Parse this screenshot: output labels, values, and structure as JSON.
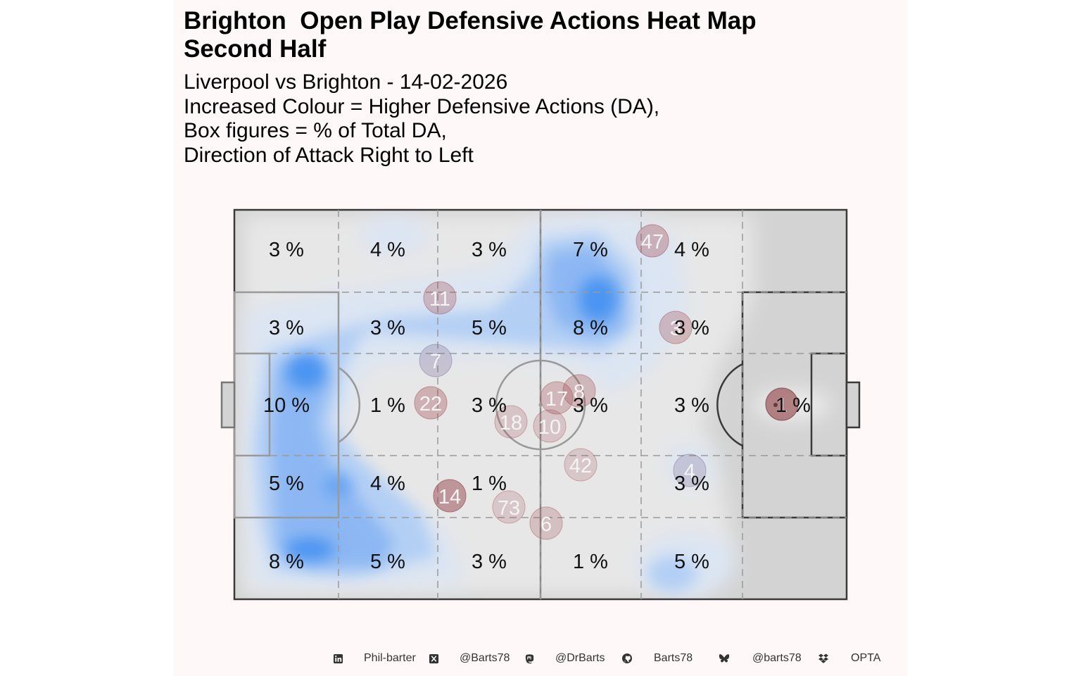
{
  "title": {
    "line1": "Brighton  Open Play Defensive Actions Heat Map",
    "line2": "Second Half"
  },
  "subtitle": {
    "line1": "Liverpool vs Brighton - 14-02-2026",
    "line2": "Increased Colour = Higher Defensive Actions (DA),",
    "line3": "Box figures = % of Total DA,",
    "line4": "Direction of Attack Right to Left"
  },
  "chart_data": {
    "type": "heatmap",
    "description_of_zones": "percent of total defensive actions per pitch zone",
    "zone_grid": {
      "rows": [
        "top",
        "upper",
        "middle",
        "lower",
        "bottom"
      ],
      "columns": 6,
      "values_percent": [
        [
          "3 %",
          "4 %",
          "3 %",
          "7 %",
          "4 %"
        ],
        [
          "3 %",
          "3 %",
          "5 %",
          "8 %",
          "3 %"
        ],
        [
          "10 %",
          "1 %",
          "3 %",
          "3 %",
          "3 %",
          "1 %"
        ],
        [
          "5 %",
          "4 %",
          "1 %",
          "",
          "3 %"
        ],
        [
          "8 %",
          "5 %",
          "3 %",
          "1 %",
          "5 %"
        ]
      ]
    },
    "player_average_positions": [
      {
        "number": "47"
      },
      {
        "number": "11"
      },
      {
        "number": "3"
      },
      {
        "number": "7"
      },
      {
        "number": "8"
      },
      {
        "number": "17"
      },
      {
        "number": "22"
      },
      {
        "number": "18"
      },
      {
        "number": "10"
      },
      {
        "number": "1"
      },
      {
        "number": "42"
      },
      {
        "number": "4"
      },
      {
        "number": "14"
      },
      {
        "number": "73"
      },
      {
        "number": "6"
      }
    ],
    "colors": {
      "pitch": "#d3d3d3",
      "density_low": "#e6e6e6",
      "density_mid": "#b9d3f2",
      "density_high": "#3d8ef5",
      "player_marker": "#a04a50"
    }
  },
  "footer": {
    "items": [
      {
        "icon": "linkedin-icon",
        "label": "Phil-barter"
      },
      {
        "icon": "x-twitter-icon",
        "label": "@Barts78"
      },
      {
        "icon": "mastodon-icon",
        "label": "@DrBarts"
      },
      {
        "icon": "github-icon",
        "label": "Barts78"
      },
      {
        "icon": "bluesky-icon",
        "label": "@barts78"
      },
      {
        "icon": "dropbox-icon",
        "label": "OPTA"
      }
    ]
  }
}
